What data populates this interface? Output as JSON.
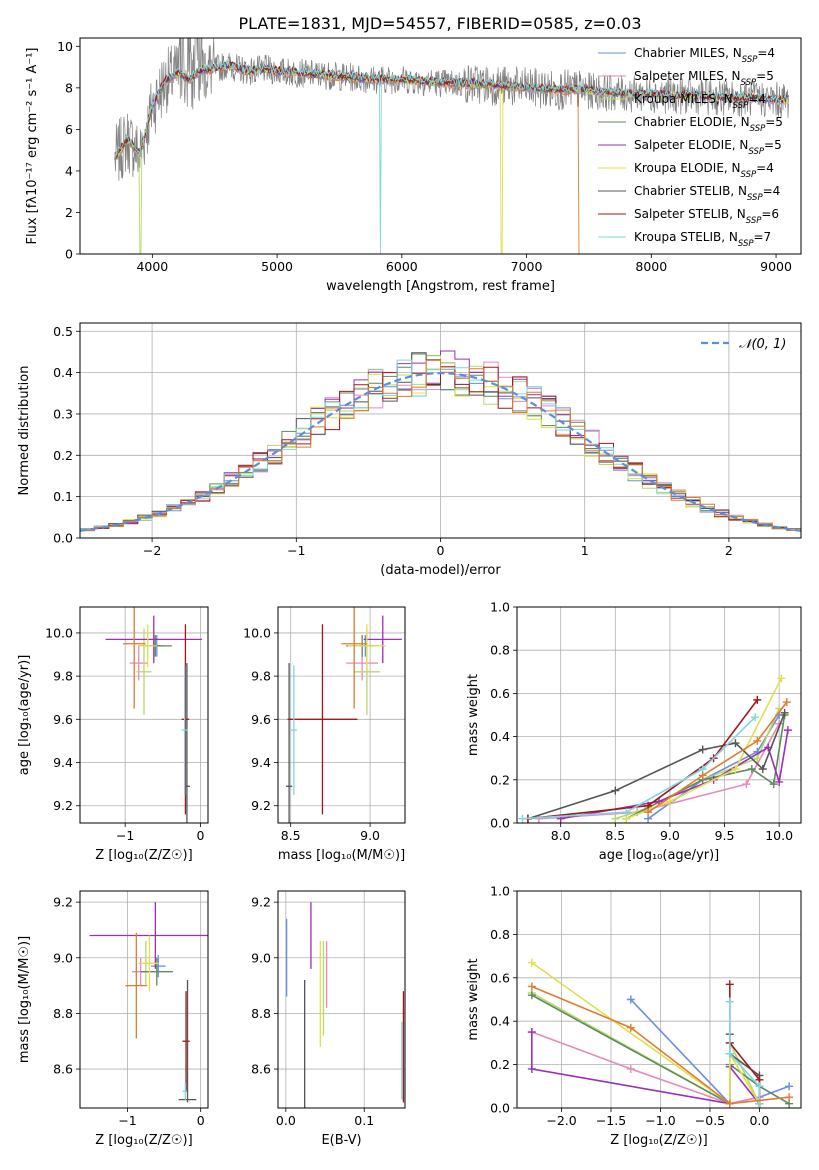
{
  "figure_title": "PLATE=1831, MJD=54557, FIBERID=0585, z=0.03",
  "colors": {
    "Chabrier MILES": "#6a8fe0",
    "Salpeter MILES": "#e58aba",
    "Kroupa MILES": "#b6d96a",
    "Chabrier ELODIE": "#5f8a5f",
    "Salpeter ELODIE": "#9b30b5",
    "Kroupa ELODIE": "#dfe04a",
    "Chabrier STELIB": "#555555",
    "Salpeter STELIB": "#a01818",
    "Kroupa STELIB": "#7fd5e0",
    "Chabrier MILES orange": "#e07b2f",
    "data": "#808080"
  },
  "chart_data": [
    {
      "id": "spectrum",
      "type": "line",
      "title": "PLATE=1831, MJD=54557, FIBERID=0585, z=0.03",
      "xlabel": "wavelength [Angstrom, rest frame]",
      "ylabel": "Flux [fλ10⁻¹⁷ erg cm⁻² s⁻¹ A⁻¹]",
      "xlim": [
        3420,
        9200
      ],
      "ylim": [
        0,
        10.4
      ],
      "xticks": [
        4000,
        5000,
        6000,
        7000,
        8000,
        9000
      ],
      "yticks": [
        0,
        2,
        4,
        6,
        8,
        10
      ],
      "grid": false,
      "legend_position": "upper-right",
      "legend": [
        {
          "label": "Chabrier MILES, N",
          "sub": "SSP",
          "tail": "=4",
          "color_key": "Chabrier MILES"
        },
        {
          "label": "Salpeter MILES, N",
          "sub": "SSP",
          "tail": "=5",
          "color_key": "Salpeter MILES"
        },
        {
          "label": "Kroupa MILES, N",
          "sub": "SSP",
          "tail": "=4",
          "color_key": "Kroupa MILES"
        },
        {
          "label": "Chabrier ELODIE, N",
          "sub": "SSP",
          "tail": "=5",
          "color_key": "Chabrier ELODIE"
        },
        {
          "label": "Salpeter ELODIE, N",
          "sub": "SSP",
          "tail": "=5",
          "color_key": "Salpeter ELODIE"
        },
        {
          "label": "Kroupa ELODIE, N",
          "sub": "SSP",
          "tail": "=4",
          "color_key": "Kroupa ELODIE"
        },
        {
          "label": "Chabrier STELIB, N",
          "sub": "SSP",
          "tail": "=4",
          "color_key": "Chabrier STELIB"
        },
        {
          "label": "Salpeter STELIB, N",
          "sub": "SSP",
          "tail": "=6",
          "color_key": "Salpeter STELIB"
        },
        {
          "label": "Kroupa STELIB, N",
          "sub": "SSP",
          "tail": "=7",
          "color_key": "Kroupa STELIB"
        }
      ],
      "model_continuum": {
        "x": [
          3700,
          3800,
          3900,
          4000,
          4100,
          4200,
          4300,
          4400,
          4500,
          4600,
          4700,
          4800,
          4900,
          5000,
          5200,
          5400,
          5600,
          5800,
          6000,
          6200,
          6400,
          6600,
          6800,
          7000,
          7200,
          7400,
          7600,
          7800,
          8000,
          8200,
          8400,
          8600,
          8800,
          9000,
          9100
        ],
        "y": [
          4.6,
          5.5,
          4.8,
          7.1,
          8.3,
          8.7,
          8.4,
          8.9,
          8.9,
          9.1,
          8.9,
          8.8,
          8.9,
          8.8,
          8.7,
          8.6,
          8.5,
          8.4,
          8.4,
          8.3,
          8.2,
          8.2,
          8.1,
          8.0,
          7.9,
          7.9,
          7.8,
          7.7,
          7.7,
          7.6,
          7.6,
          7.5,
          7.5,
          7.4,
          7.4
        ]
      },
      "model_cutoffs": [
        {
          "x": 3905,
          "note": "Kroupa MILES"
        },
        {
          "x": 5830,
          "note": "Kroupa STELIB"
        },
        {
          "x": 6800,
          "note": "Kroupa ELODIE"
        },
        {
          "x": 7420,
          "note": "Chabrier MILES orange"
        }
      ]
    },
    {
      "id": "residuals",
      "type": "bar",
      "xlabel": "(data-model)/error",
      "ylabel": "Normed distribution",
      "xlim": [
        -2.5,
        2.5
      ],
      "ylim": [
        0,
        0.52
      ],
      "xticks": [
        -2,
        -1,
        0,
        1,
        2
      ],
      "yticks": [
        0.0,
        0.1,
        0.2,
        0.3,
        0.4,
        0.5
      ],
      "grid": true,
      "legend_position": "upper-right",
      "legend": [
        {
          "label": "𝒩(0, 1)",
          "style": "dashed",
          "color": "#5a8fd6"
        }
      ],
      "bin_edges_start": -2.5,
      "bin_width": 0.1,
      "gaussian": {
        "mean": 0,
        "sigma": 1
      }
    },
    {
      "id": "age_vs_Z",
      "type": "scatter",
      "xlabel": "Z [log₁₀(Z/Z☉)]",
      "ylabel": "age [log₁₀(age/yr)]",
      "xlim": [
        -1.6,
        0.1
      ],
      "ylim": [
        9.12,
        10.12
      ],
      "xticks": [
        -1,
        0
      ],
      "yticks": [
        9.2,
        9.4,
        9.6,
        9.8,
        10.0
      ],
      "grid": true,
      "points": [
        {
          "color_key": "Chabrier MILES",
          "x": -0.58,
          "xerr": 0.1,
          "y": 9.94,
          "yerr": 0.05
        },
        {
          "color_key": "Salpeter MILES",
          "x": -0.82,
          "xerr": 0.12,
          "y": 9.86,
          "yerr": 0.08
        },
        {
          "color_key": "Kroupa MILES",
          "x": -0.75,
          "xerr": 0.1,
          "y": 9.82,
          "yerr": 0.2
        },
        {
          "color_key": "Chabrier ELODIE",
          "x": -0.6,
          "xerr": 0.22,
          "y": 9.94,
          "yerr": 0.05
        },
        {
          "color_key": "Salpeter ELODIE",
          "x": -0.62,
          "xerr": 0.64,
          "y": 9.97,
          "yerr": 0.11
        },
        {
          "color_key": "Kroupa ELODIE",
          "x": -0.7,
          "xerr": 0.12,
          "y": 9.94,
          "yerr": 0.1
        },
        {
          "color_key": "Chabrier STELIB",
          "x": -0.18,
          "xerr": 0.04,
          "y": 9.29,
          "yerr": 0.57
        },
        {
          "color_key": "Salpeter STELIB",
          "x": -0.2,
          "xerr": 0.05,
          "y": 9.6,
          "yerr": 0.44
        },
        {
          "color_key": "Kroupa STELIB",
          "x": -0.21,
          "xerr": 0.04,
          "y": 9.55,
          "yerr": 0.3
        },
        {
          "color_key": "Chabrier MILES orange",
          "x": -0.88,
          "xerr": 0.15,
          "y": 9.95,
          "yerr": 0.3
        }
      ]
    },
    {
      "id": "age_vs_mass",
      "type": "scatter",
      "xlabel": "mass [log₁₀(M/M☉)]",
      "ylabel": "",
      "xlim": [
        8.42,
        9.22
      ],
      "ylim": [
        9.12,
        10.12
      ],
      "xticks": [
        8.5,
        9.0
      ],
      "yticks": [
        9.2,
        9.4,
        9.6,
        9.8,
        10.0
      ],
      "grid": true,
      "points": [
        {
          "color_key": "Chabrier MILES",
          "x": 8.97,
          "xerr": 0.04,
          "y": 9.94,
          "yerr": 0.05
        },
        {
          "color_key": "Salpeter MILES",
          "x": 8.95,
          "xerr": 0.1,
          "y": 9.86,
          "yerr": 0.08
        },
        {
          "color_key": "Kroupa MILES",
          "x": 8.98,
          "xerr": 0.08,
          "y": 9.82,
          "yerr": 0.2
        },
        {
          "color_key": "Chabrier ELODIE",
          "x": 8.95,
          "xerr": 0.1,
          "y": 9.94,
          "yerr": 0.05
        },
        {
          "color_key": "Salpeter ELODIE",
          "x": 9.08,
          "xerr": 0.12,
          "y": 9.97,
          "yerr": 0.11
        },
        {
          "color_key": "Kroupa ELODIE",
          "x": 8.98,
          "xerr": 0.12,
          "y": 9.94,
          "yerr": 0.1
        },
        {
          "color_key": "Chabrier STELIB",
          "x": 8.49,
          "xerr": 0.02,
          "y": 9.29,
          "yerr": 0.57
        },
        {
          "color_key": "Salpeter STELIB",
          "x": 8.7,
          "xerr": 0.22,
          "y": 9.6,
          "yerr": 0.44
        },
        {
          "color_key": "Kroupa STELIB",
          "x": 8.52,
          "xerr": 0.02,
          "y": 9.55,
          "yerr": 0.3
        },
        {
          "color_key": "Chabrier MILES orange",
          "x": 8.9,
          "xerr": 0.08,
          "y": 9.95,
          "yerr": 0.3
        }
      ]
    },
    {
      "id": "weight_vs_age",
      "type": "line",
      "xlabel": "age [log₁₀(age/yr)]",
      "ylabel": "mass weight",
      "xlim": [
        7.6,
        10.2
      ],
      "ylim": [
        0.0,
        1.0
      ],
      "xticks": [
        8.0,
        8.5,
        9.0,
        9.5,
        10.0
      ],
      "yticks": [
        0.0,
        0.2,
        0.4,
        0.6,
        0.8,
        1.0
      ],
      "grid": true,
      "series": [
        {
          "color_key": "Chabrier MILES",
          "x": [
            8.8,
            9.3,
            9.8,
            10.0
          ],
          "y": [
            0.02,
            0.2,
            0.33,
            0.5
          ]
        },
        {
          "color_key": "Salpeter MILES",
          "x": [
            7.8,
            8.7,
            9.7,
            10.0
          ],
          "y": [
            0.02,
            0.05,
            0.18,
            0.46
          ]
        },
        {
          "color_key": "Kroupa MILES",
          "x": [
            8.5,
            8.8,
            9.3,
            9.8,
            10.0
          ],
          "y": [
            0.02,
            0.07,
            0.2,
            0.3,
            0.53
          ]
        },
        {
          "color_key": "Chabrier ELODIE",
          "x": [
            8.6,
            9.3,
            9.75,
            9.95,
            10.05
          ],
          "y": [
            0.02,
            0.2,
            0.25,
            0.18,
            0.5
          ]
        },
        {
          "color_key": "Salpeter ELODIE",
          "x": [
            8.0,
            8.9,
            9.4,
            9.9,
            10.0,
            10.08
          ],
          "y": [
            0.02,
            0.1,
            0.2,
            0.35,
            0.19,
            0.43
          ]
        },
        {
          "color_key": "Kroupa ELODIE",
          "x": [
            8.6,
            9.0,
            9.6,
            10.02
          ],
          "y": [
            0.02,
            0.1,
            0.25,
            0.67
          ]
        },
        {
          "color_key": "Chabrier STELIB",
          "x": [
            7.7,
            8.5,
            9.3,
            9.6,
            9.85,
            10.05
          ],
          "y": [
            0.02,
            0.15,
            0.34,
            0.37,
            0.25,
            0.51
          ]
        },
        {
          "color_key": "Salpeter STELIB",
          "x": [
            7.7,
            8.8,
            9.4,
            9.8
          ],
          "y": [
            0.02,
            0.08,
            0.3,
            0.57
          ]
        },
        {
          "color_key": "Kroupa STELIB",
          "x": [
            7.65,
            8.6,
            9.3,
            9.78
          ],
          "y": [
            0.02,
            0.05,
            0.25,
            0.49
          ]
        },
        {
          "color_key": "Chabrier MILES orange",
          "x": [
            8.8,
            9.3,
            9.8,
            10.07
          ],
          "y": [
            0.05,
            0.22,
            0.38,
            0.56
          ]
        }
      ]
    },
    {
      "id": "mass_vs_Z",
      "type": "scatter",
      "xlabel": "Z [log₁₀(Z/Z☉)]",
      "ylabel": "mass [log₁₀(M/M☉)]",
      "xlim": [
        -1.65,
        0.1
      ],
      "ylim": [
        8.46,
        9.24
      ],
      "xticks": [
        -1,
        0
      ],
      "yticks": [
        8.6,
        8.8,
        9.0,
        9.2
      ],
      "grid": true,
      "points": [
        {
          "color_key": "Chabrier MILES",
          "x": -0.58,
          "xerr": 0.1,
          "y": 8.97,
          "yerr": 0.04
        },
        {
          "color_key": "Salpeter MILES",
          "x": -0.82,
          "xerr": 0.12,
          "y": 8.95,
          "yerr": 0.05
        },
        {
          "color_key": "Kroupa MILES",
          "x": -0.75,
          "xerr": 0.1,
          "y": 8.98,
          "yerr": 0.08
        },
        {
          "color_key": "Chabrier ELODIE",
          "x": -0.6,
          "xerr": 0.22,
          "y": 8.95,
          "yerr": 0.05
        },
        {
          "color_key": "Salpeter ELODIE",
          "x": -0.62,
          "xerr": 0.9,
          "y": 9.08,
          "yerr": 0.12
        },
        {
          "color_key": "Kroupa ELODIE",
          "x": -0.7,
          "xerr": 0.12,
          "y": 8.98,
          "yerr": 0.1
        },
        {
          "color_key": "Chabrier STELIB",
          "x": -0.18,
          "xerr": 0.12,
          "y": 8.49,
          "yerr": 0.0
        },
        {
          "color_key": "Salpeter STELIB",
          "x": -0.2,
          "xerr": 0.05,
          "y": 8.7,
          "yerr": 0.18
        },
        {
          "color_key": "Kroupa STELIB",
          "x": -0.21,
          "xerr": 0.04,
          "y": 8.52,
          "yerr": 0.03
        },
        {
          "color_key": "Chabrier MILES orange",
          "x": -0.88,
          "xerr": 0.15,
          "y": 8.9,
          "yerr": 0.19
        },
        {
          "color_key": "Chabrier STELIB",
          "x": -0.18,
          "xerr": 0.0,
          "y": 8.7,
          "yerr": 0.22
        }
      ]
    },
    {
      "id": "mass_vs_ebv",
      "type": "scatter",
      "xlabel": "E(B-V)",
      "ylabel": "",
      "xlim": [
        -0.01,
        0.152
      ],
      "ylim": [
        8.46,
        9.24
      ],
      "xticks": [
        0.0,
        0.1
      ],
      "yticks": [
        8.6,
        8.8,
        9.0,
        9.2
      ],
      "grid": true,
      "points": [
        {
          "color_key": "Chabrier MILES",
          "x": 0.001,
          "yerr": 0.14,
          "y": 9.0
        },
        {
          "color_key": "Salpeter ELODIE",
          "x": 0.032,
          "yerr": 0.12,
          "y": 9.08
        },
        {
          "color_key": "Kroupa ELODIE",
          "x": 0.044,
          "yerr": 0.19,
          "y": 8.87
        },
        {
          "color_key": "Salpeter MILES",
          "x": 0.052,
          "yerr": 0.12,
          "y": 8.94
        },
        {
          "color_key": "Kroupa MILES",
          "x": 0.048,
          "yerr": 0.17,
          "y": 8.89
        },
        {
          "color_key": "Chabrier STELIB",
          "x": 0.024,
          "yerr": 0.23,
          "y": 8.69
        },
        {
          "color_key": "Salpeter STELIB",
          "x": 0.15,
          "yerr": 0.2,
          "y": 8.68
        },
        {
          "color_key": "Kroupa STELIB",
          "x": 0.148,
          "yerr": 0.14,
          "y": 8.63
        }
      ]
    },
    {
      "id": "weight_vs_Z",
      "type": "line",
      "xlabel": "Z [log₁₀(Z/Z☉)]",
      "ylabel": "mass weight",
      "xlim": [
        -2.45,
        0.42
      ],
      "ylim": [
        0.0,
        1.0
      ],
      "xticks": [
        -2.0,
        -1.5,
        -1.0,
        -0.5,
        0.0
      ],
      "yticks": [
        0.0,
        0.2,
        0.4,
        0.6,
        0.8,
        1.0
      ],
      "grid": true,
      "series": [
        {
          "color_key": "Chabrier MILES",
          "x": [
            -1.3,
            -0.3,
            0.0,
            0.3
          ],
          "y": [
            0.5,
            0.02,
            0.05,
            0.1
          ]
        },
        {
          "color_key": "Salpeter MILES",
          "x": [
            -2.3,
            -1.3,
            -0.3,
            0.0
          ],
          "y": [
            0.35,
            0.18,
            0.02,
            0.05
          ]
        },
        {
          "color_key": "Kroupa MILES",
          "x": [
            -2.3,
            -0.3,
            -0.3,
            0.0
          ],
          "y": [
            0.53,
            0.02,
            0.3,
            0.02
          ]
        },
        {
          "color_key": "Chabrier ELODIE",
          "x": [
            -2.3,
            -0.3,
            -0.3,
            0.0,
            0.3
          ],
          "y": [
            0.52,
            0.02,
            0.2,
            0.1,
            0.02
          ]
        },
        {
          "color_key": "Salpeter ELODIE",
          "x": [
            -2.3,
            -2.3,
            -0.3,
            -0.3,
            0.0
          ],
          "y": [
            0.35,
            0.18,
            0.02,
            0.19,
            0.02
          ]
        },
        {
          "color_key": "Kroupa ELODIE",
          "x": [
            -2.3,
            -0.3,
            -0.3,
            0.0
          ],
          "y": [
            0.67,
            0.02,
            0.25,
            0.02
          ]
        },
        {
          "color_key": "Chabrier STELIB",
          "x": [
            -0.3,
            -0.3,
            0.0,
            0.0
          ],
          "y": [
            0.34,
            0.25,
            0.15,
            0.02
          ]
        },
        {
          "color_key": "Salpeter STELIB",
          "x": [
            -0.3,
            -0.3,
            0.0,
            0.0
          ],
          "y": [
            0.57,
            0.3,
            0.13,
            0.02
          ]
        },
        {
          "color_key": "Kroupa STELIB",
          "x": [
            -0.3,
            -0.3,
            0.0,
            0.0
          ],
          "y": [
            0.49,
            0.25,
            0.1,
            0.02
          ]
        },
        {
          "color_key": "Chabrier MILES orange",
          "x": [
            -2.3,
            -1.3,
            -0.3,
            0.3
          ],
          "y": [
            0.56,
            0.37,
            0.02,
            0.05
          ]
        }
      ]
    }
  ]
}
